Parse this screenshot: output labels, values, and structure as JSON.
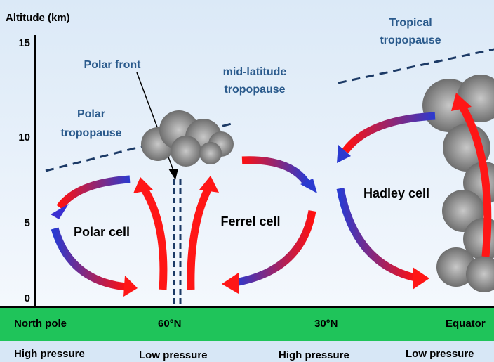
{
  "axis": {
    "title": "Altitude (km)",
    "ticks": [
      "15",
      "10",
      "5",
      "0"
    ]
  },
  "labels": {
    "polar_front": "Polar front",
    "mid_latitude_tropopause": [
      "mid-latitude",
      "tropopause"
    ],
    "polar_tropopause": [
      "Polar",
      "tropopause"
    ],
    "tropical_tropopause": [
      "Tropical",
      "tropopause"
    ]
  },
  "cells": {
    "polar": "Polar cell",
    "ferrel": "Ferrel cell",
    "hadley": "Hadley cell"
  },
  "ground": [
    "North pole",
    "60°N",
    "30°N",
    "Equator"
  ],
  "pressure": [
    "High pressure",
    "Low pressure",
    "High pressure",
    "Low pressure"
  ]
}
